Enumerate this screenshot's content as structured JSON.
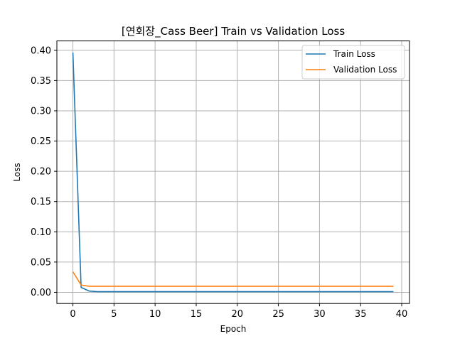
{
  "chart_data": {
    "type": "line",
    "title": "[연회장_Cass Beer] Train vs Validation Loss",
    "xlabel": "Epoch",
    "ylabel": "Loss",
    "xlim": [
      -1.95,
      40.95
    ],
    "ylim": [
      -0.0185,
      0.4155
    ],
    "xticks": [
      0,
      5,
      10,
      15,
      20,
      25,
      30,
      35,
      40
    ],
    "yticks": [
      0.0,
      0.05,
      0.1,
      0.15,
      0.2,
      0.25,
      0.3,
      0.35,
      0.4
    ],
    "xtick_labels": [
      "0",
      "5",
      "10",
      "15",
      "20",
      "25",
      "30",
      "35",
      "40"
    ],
    "ytick_labels": [
      "0.00",
      "0.05",
      "0.10",
      "0.15",
      "0.20",
      "0.25",
      "0.30",
      "0.35",
      "0.40"
    ],
    "grid": true,
    "legend_position": "top-right",
    "x": [
      0,
      1,
      2,
      3,
      4,
      5,
      6,
      7,
      8,
      9,
      10,
      11,
      12,
      13,
      14,
      15,
      16,
      17,
      18,
      19,
      20,
      21,
      22,
      23,
      24,
      25,
      26,
      27,
      28,
      29,
      30,
      31,
      32,
      33,
      34,
      35,
      36,
      37,
      38,
      39
    ],
    "series": [
      {
        "name": "Train Loss",
        "color": "#1f77b4",
        "values": [
          0.396,
          0.008,
          0.002,
          0.001,
          0.001,
          0.001,
          0.001,
          0.001,
          0.001,
          0.001,
          0.001,
          0.001,
          0.001,
          0.001,
          0.001,
          0.001,
          0.001,
          0.001,
          0.001,
          0.001,
          0.001,
          0.001,
          0.001,
          0.001,
          0.001,
          0.001,
          0.001,
          0.001,
          0.001,
          0.001,
          0.001,
          0.001,
          0.001,
          0.001,
          0.001,
          0.001,
          0.001,
          0.001,
          0.001,
          0.001
        ]
      },
      {
        "name": "Validation Loss",
        "color": "#ff7f0e",
        "values": [
          0.034,
          0.012,
          0.01,
          0.01,
          0.01,
          0.01,
          0.01,
          0.01,
          0.01,
          0.01,
          0.01,
          0.01,
          0.01,
          0.01,
          0.01,
          0.01,
          0.01,
          0.01,
          0.01,
          0.01,
          0.01,
          0.01,
          0.01,
          0.01,
          0.01,
          0.01,
          0.01,
          0.01,
          0.01,
          0.01,
          0.01,
          0.01,
          0.01,
          0.01,
          0.01,
          0.01,
          0.01,
          0.01,
          0.01,
          0.01
        ]
      }
    ]
  }
}
